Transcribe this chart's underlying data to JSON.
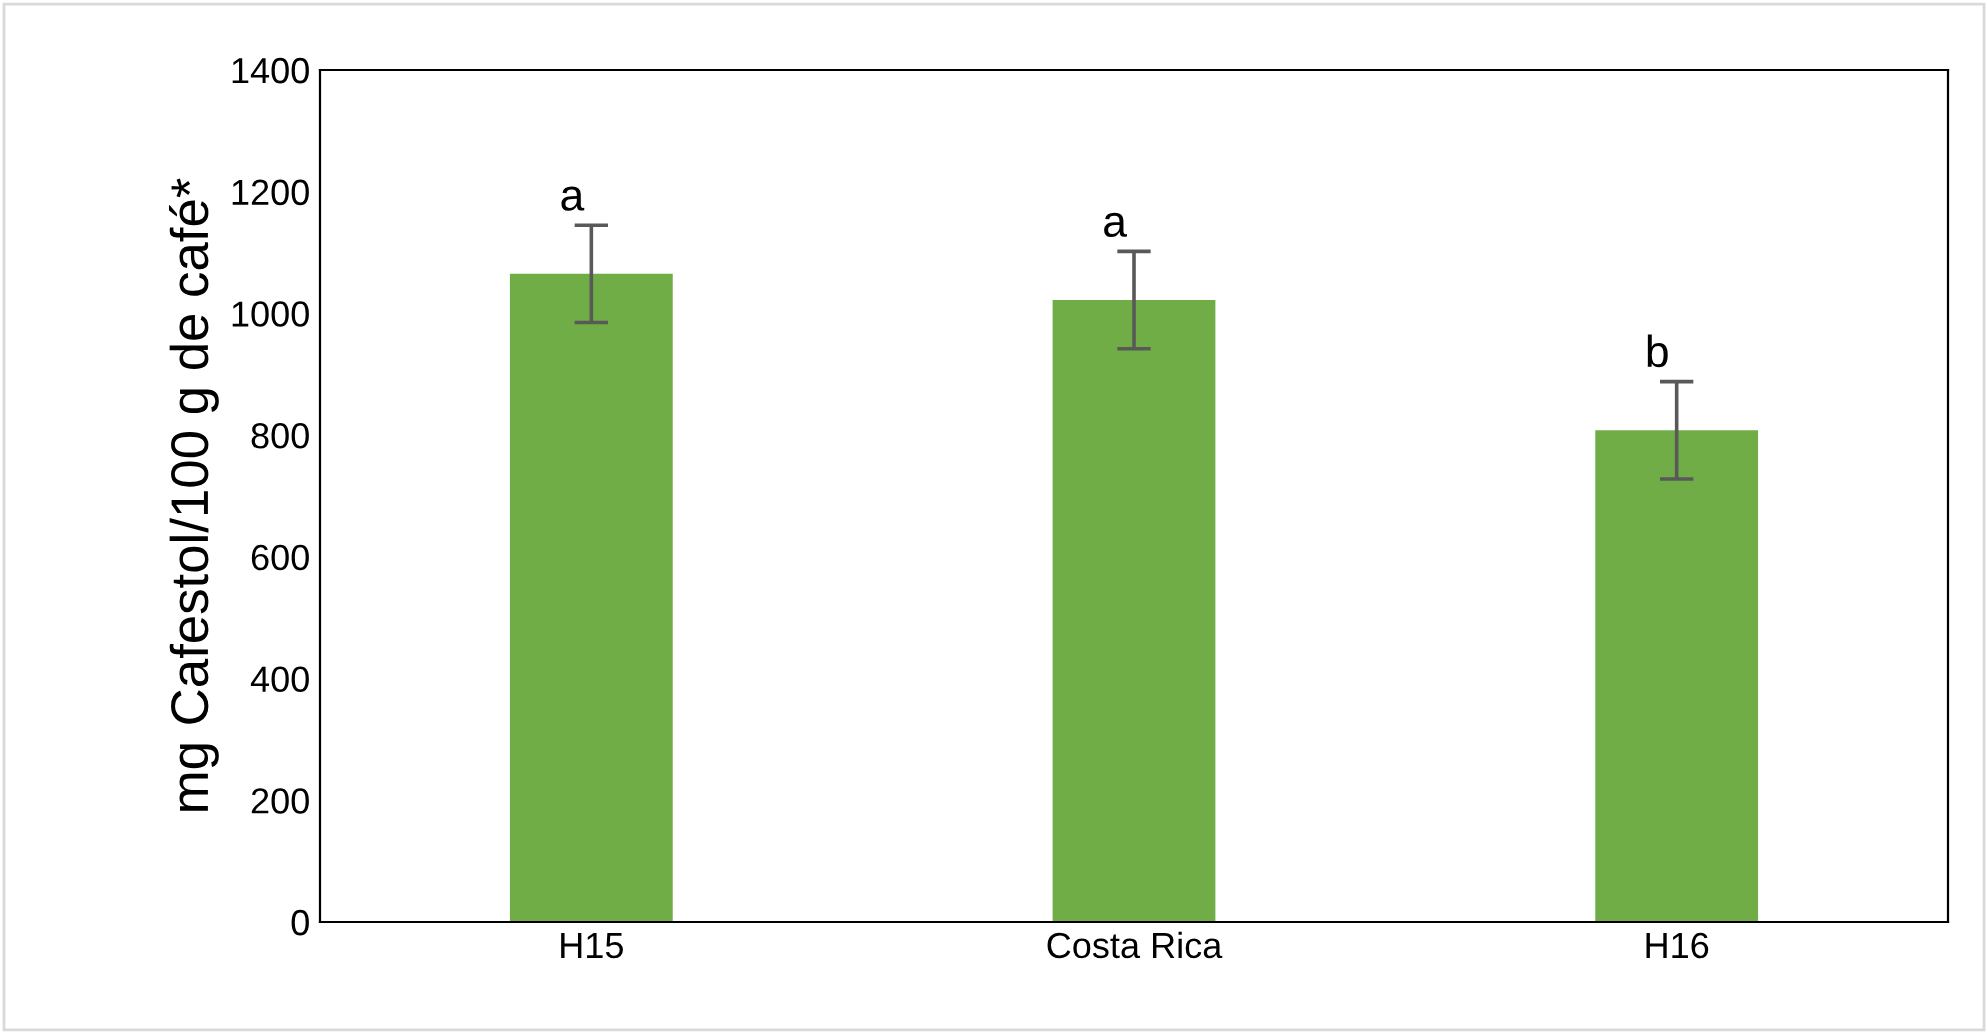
{
  "chart_data": {
    "type": "bar",
    "ylabel": "mg Cafestol/100 g de café*",
    "categories": [
      "H15",
      "Costa Rica",
      "H16"
    ],
    "values": [
      1065,
      1022,
      808
    ],
    "errors": [
      80,
      80,
      80
    ],
    "color": "#70ad47",
    "ylim": [
      0,
      1400
    ],
    "yticks": [
      0,
      200,
      400,
      600,
      800,
      1000,
      1200,
      1400
    ],
    "grid": false,
    "annotations": [
      "a",
      "a",
      "b"
    ]
  }
}
